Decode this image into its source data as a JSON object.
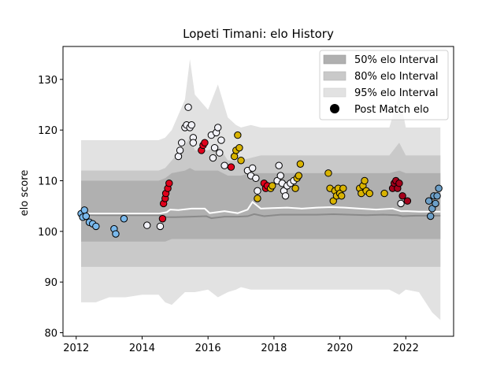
{
  "chart_data": {
    "type": "scatter",
    "title": "Lopeti Timani: elo History",
    "xlabel": "",
    "ylabel": "elo score",
    "xlim": [
      2011.6,
      2023.45
    ],
    "ylim": [
      79.3,
      136.5
    ],
    "xticks": [
      "2012",
      "2014",
      "2016",
      "2018",
      "2020",
      "2022"
    ],
    "yticks": [
      "80",
      "90",
      "100",
      "110",
      "120",
      "130"
    ],
    "grid": false,
    "legend_position": "top-right",
    "legend": [
      {
        "label": "50% elo Interval",
        "color": "#b0b0b0"
      },
      {
        "label": "80% elo Interval",
        "color": "#c9c9c9"
      },
      {
        "label": "95% elo Interval",
        "color": "#e2e2e2"
      },
      {
        "label": "Post Match elo",
        "color": "#000000"
      }
    ],
    "bands": {
      "x": [
        2012.15,
        2012.6,
        2013.0,
        2013.5,
        2014.0,
        2014.5,
        2014.7,
        2014.9,
        2015.3,
        2015.45,
        2015.6,
        2016.0,
        2016.3,
        2016.6,
        2016.85,
        2017.0,
        2017.3,
        2017.6,
        2017.9,
        2018.3,
        2018.7,
        2019.0,
        2019.5,
        2019.9,
        2020.3,
        2020.7,
        2021.1,
        2021.5,
        2021.8,
        2022.0,
        2022.4,
        2022.8,
        2023.05
      ],
      "p95_upper": [
        118,
        118,
        118,
        118,
        118,
        118,
        118.5,
        120,
        126,
        134,
        127,
        124,
        129,
        122.5,
        121,
        120.5,
        121,
        120.5,
        120.5,
        120.5,
        120.5,
        120.5,
        120.5,
        120.5,
        120.5,
        120.5,
        120.5,
        120.5,
        127,
        120.5,
        120.5,
        120.5,
        120.5
      ],
      "p80_upper": [
        112,
        112,
        112,
        112,
        112,
        112,
        112.5,
        114,
        117,
        118.5,
        116,
        116,
        117,
        114,
        114,
        114,
        114.5,
        115,
        115,
        115,
        115,
        115,
        115,
        115,
        115,
        115,
        115,
        115,
        117.5,
        115,
        115,
        115,
        115
      ],
      "p50_upper": [
        110,
        110,
        110,
        110,
        110,
        110,
        110.5,
        111.5,
        112,
        112.5,
        112,
        112,
        112,
        111,
        111,
        111,
        111.5,
        111.5,
        111.5,
        111.5,
        111.5,
        111.5,
        111.5,
        111.5,
        111.5,
        111.5,
        111.5,
        111.5,
        112,
        111.5,
        111.5,
        111.5,
        111.5
      ],
      "p50_lower": [
        98,
        98,
        98,
        98,
        98,
        98,
        98,
        98.5,
        98.5,
        98.5,
        98.5,
        98.5,
        98.5,
        98.5,
        98.5,
        98.5,
        98.5,
        98.5,
        98.5,
        98.5,
        98.5,
        98.5,
        98.5,
        98.5,
        98.5,
        98.5,
        98.5,
        98.5,
        98.5,
        98.5,
        98.5,
        98.5,
        98.5
      ],
      "p80_lower": [
        93,
        93,
        93,
        93,
        93,
        93,
        93,
        93,
        93,
        93,
        93,
        93,
        93,
        93,
        93,
        93,
        93,
        93,
        93,
        93,
        93,
        93,
        93,
        93,
        93,
        93,
        93,
        93,
        93,
        93,
        93,
        93,
        93
      ],
      "p95_lower": [
        86,
        86,
        87,
        87,
        87.5,
        87.5,
        86,
        85.5,
        88,
        88,
        88,
        88.5,
        87,
        88,
        88.5,
        89,
        88.5,
        88.5,
        88.5,
        88.5,
        88.5,
        88.5,
        88.5,
        88.5,
        88.5,
        88.5,
        88.5,
        88.5,
        87.5,
        88.5,
        88,
        84,
        82.5
      ]
    },
    "median_line": {
      "x": [
        2012.15,
        2012.6,
        2013.0,
        2013.5,
        2014.0,
        2014.5,
        2014.75,
        2014.85,
        2015.1,
        2015.5,
        2015.9,
        2016.05,
        2016.5,
        2016.9,
        2017.2,
        2017.35,
        2017.6,
        2017.95,
        2018.4,
        2018.85,
        2019.3,
        2019.75,
        2020.15,
        2020.6,
        2021.1,
        2021.6,
        2021.85,
        2022.05,
        2022.4,
        2022.8,
        2023.05
      ],
      "values": [
        103.5,
        103.5,
        103.5,
        103.5,
        103.5,
        103.5,
        103.8,
        104.3,
        104.2,
        104.5,
        104.5,
        103.6,
        104.0,
        103.6,
        104.3,
        105.8,
        104.5,
        104.6,
        104.7,
        104.5,
        104.7,
        104.8,
        104.7,
        104.5,
        104.3,
        104.5,
        104.0,
        104.0,
        103.9,
        103.9,
        103.9
      ]
    },
    "lower_line": {
      "x": [
        2012.15,
        2012.6,
        2013.0,
        2013.5,
        2014.0,
        2014.5,
        2014.75,
        2015.0,
        2015.5,
        2015.95,
        2016.1,
        2016.5,
        2016.9,
        2017.2,
        2017.4,
        2017.7,
        2018.2,
        2018.8,
        2019.3,
        2019.8,
        2020.3,
        2020.8,
        2021.3,
        2021.75,
        2021.9,
        2022.3,
        2022.8,
        2023.05
      ],
      "values": [
        103.3,
        103.2,
        103.2,
        103.2,
        103.2,
        103.2,
        102.8,
        102.8,
        102.9,
        103.0,
        102.6,
        102.9,
        102.9,
        103.0,
        103.4,
        103.0,
        103.3,
        103.3,
        103.3,
        103.4,
        103.3,
        103.2,
        103.3,
        103.2,
        103.0,
        103.1,
        103.1,
        103.1
      ]
    },
    "series": [
      {
        "color": "#7ab9ec",
        "points": [
          [
            2012.15,
            103.5
          ],
          [
            2012.2,
            102.8
          ],
          [
            2012.25,
            104.2
          ],
          [
            2012.3,
            103.0
          ],
          [
            2012.4,
            101.8
          ],
          [
            2012.5,
            101.5
          ],
          [
            2012.6,
            101.0
          ],
          [
            2013.15,
            100.5
          ],
          [
            2013.2,
            99.5
          ],
          [
            2013.45,
            102.5
          ]
        ]
      },
      {
        "color": "#f2f2f8",
        "points": [
          [
            2014.15,
            101.2
          ],
          [
            2014.55,
            101.0
          ]
        ]
      },
      {
        "color": "#e0001b",
        "points": [
          [
            2014.62,
            102.5
          ],
          [
            2014.65,
            105.5
          ],
          [
            2014.7,
            106.5
          ],
          [
            2014.72,
            107.5
          ],
          [
            2014.78,
            108.5
          ],
          [
            2014.82,
            109.5
          ]
        ]
      },
      {
        "color": "#f2f2f8",
        "points": [
          [
            2015.1,
            114.8
          ],
          [
            2015.15,
            116.0
          ],
          [
            2015.2,
            117.5
          ],
          [
            2015.3,
            120.5
          ],
          [
            2015.35,
            121.0
          ],
          [
            2015.4,
            124.5
          ],
          [
            2015.45,
            120.5
          ],
          [
            2015.5,
            121.0
          ],
          [
            2015.55,
            118.5
          ],
          [
            2015.55,
            117.5
          ]
        ]
      },
      {
        "color": "#e0001b",
        "points": [
          [
            2015.8,
            116.0
          ],
          [
            2015.85,
            117.0
          ],
          [
            2015.9,
            117.5
          ]
        ]
      },
      {
        "color": "#f2f2f8",
        "points": [
          [
            2016.1,
            119.0
          ],
          [
            2016.15,
            114.5
          ],
          [
            2016.2,
            116.5
          ],
          [
            2016.25,
            119.5
          ],
          [
            2016.3,
            120.5
          ],
          [
            2016.35,
            115.5
          ],
          [
            2016.4,
            118.0
          ],
          [
            2016.5,
            113.0
          ]
        ]
      },
      {
        "color": "#e0001b",
        "points": [
          [
            2016.7,
            112.7
          ]
        ]
      },
      {
        "color": "#d9b300",
        "points": [
          [
            2016.8,
            114.8
          ],
          [
            2016.85,
            116.0
          ],
          [
            2016.9,
            119.0
          ],
          [
            2016.95,
            116.5
          ],
          [
            2017.0,
            114.0
          ]
        ]
      },
      {
        "color": "#f2f2f8",
        "points": [
          [
            2017.2,
            112.0
          ],
          [
            2017.3,
            111.0
          ],
          [
            2017.35,
            112.5
          ],
          [
            2017.45,
            110.5
          ],
          [
            2017.5,
            108.0
          ]
        ]
      },
      {
        "color": "#d9b300",
        "points": [
          [
            2017.5,
            106.5
          ]
        ]
      },
      {
        "color": "#e0001b",
        "points": [
          [
            2017.7,
            109.5
          ],
          [
            2017.75,
            108.5
          ],
          [
            2017.8,
            109.0
          ]
        ]
      },
      {
        "color": "#d9b300",
        "points": [
          [
            2017.9,
            108.5
          ],
          [
            2017.95,
            109.0
          ]
        ]
      },
      {
        "color": "#f2f2f8",
        "points": [
          [
            2018.1,
            110.0
          ],
          [
            2018.15,
            113.0
          ],
          [
            2018.2,
            111.0
          ],
          [
            2018.25,
            109.5
          ],
          [
            2018.3,
            108.0
          ],
          [
            2018.35,
            107.0
          ],
          [
            2018.4,
            109.0
          ],
          [
            2018.5,
            109.5
          ],
          [
            2018.6,
            110.0
          ]
        ]
      },
      {
        "color": "#d9b300",
        "points": [
          [
            2018.65,
            108.5
          ],
          [
            2018.7,
            110.5
          ],
          [
            2018.75,
            111.0
          ],
          [
            2018.8,
            113.3
          ]
        ]
      },
      {
        "color": "#d9b300",
        "points": [
          [
            2019.65,
            111.5
          ],
          [
            2019.7,
            108.5
          ],
          [
            2019.8,
            106.0
          ],
          [
            2019.85,
            108.0
          ],
          [
            2019.9,
            107.0
          ],
          [
            2019.95,
            108.5
          ],
          [
            2020.0,
            107.5
          ],
          [
            2020.05,
            107.0
          ],
          [
            2020.1,
            108.5
          ],
          [
            2020.6,
            108.5
          ],
          [
            2020.65,
            107.5
          ],
          [
            2020.7,
            109.0
          ],
          [
            2020.75,
            110.0
          ],
          [
            2020.8,
            108.0
          ],
          [
            2020.9,
            107.5
          ],
          [
            2021.35,
            107.5
          ]
        ]
      },
      {
        "color": "#a6001b",
        "points": [
          [
            2021.6,
            108.5
          ],
          [
            2021.65,
            109.5
          ],
          [
            2021.7,
            110.0
          ],
          [
            2021.75,
            108.5
          ],
          [
            2021.8,
            109.5
          ],
          [
            2021.9,
            107.0
          ],
          [
            2022.05,
            106.0
          ]
        ]
      },
      {
        "color": "#f2f2f8",
        "points": [
          [
            2021.85,
            105.5
          ]
        ]
      },
      {
        "color": "#6c9fc8",
        "points": [
          [
            2022.7,
            106.0
          ],
          [
            2022.75,
            103.0
          ],
          [
            2022.8,
            104.5
          ],
          [
            2022.85,
            107.0
          ],
          [
            2022.9,
            105.5
          ],
          [
            2022.95,
            107.0
          ],
          [
            2023.0,
            108.5
          ]
        ]
      }
    ]
  }
}
